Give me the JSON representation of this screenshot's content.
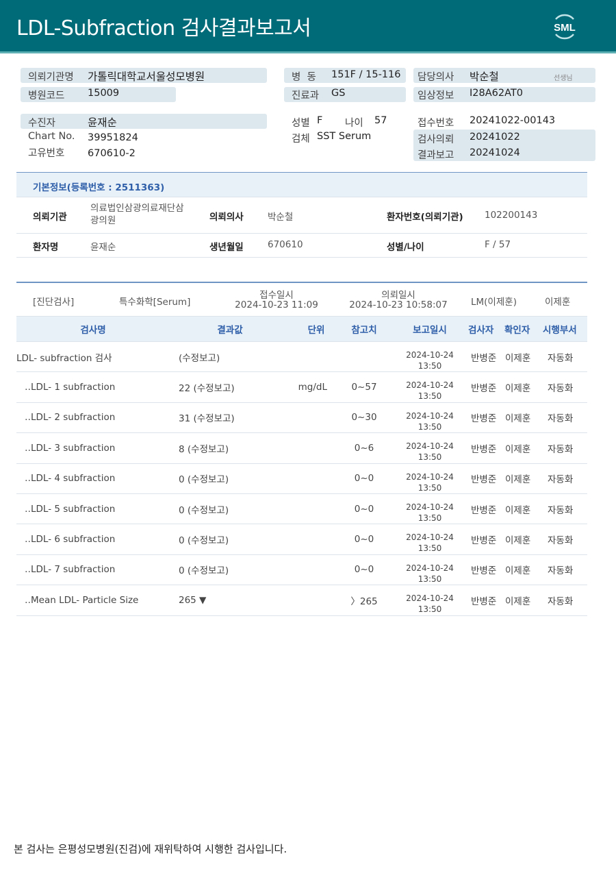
{
  "header": {
    "title": "LDL-Subfraction 검사결과보고서",
    "logo": "SML"
  },
  "info": {
    "inst_label": "의뢰기관명",
    "inst": "가톨릭대학교서울성모병원",
    "code_label": "병원코드",
    "code": "15009",
    "ward_label": "병  동",
    "ward": "151F / 15-116",
    "dept_label": "진료과",
    "dept": "GS",
    "doctor_label": "담당의사",
    "doctor": "박순철",
    "doctor_suffix": "선생님",
    "clinical_label": "임상정보",
    "clinical": "I28A62AT0",
    "patient_label": "수진자",
    "patient": "윤재순",
    "chart_label": "Chart No.",
    "chart": "39951824",
    "uid_label": "고유번호",
    "uid": "670610-2",
    "sex_label": "성별",
    "sex": "F",
    "age_label": "나이",
    "age": "57",
    "specimen_label": "검체",
    "specimen": "SST Serum",
    "receipt_label": "접수번호",
    "receipt": "20241022-00143",
    "request_label": "검사의뢰",
    "request": "20241022",
    "report_label": "결과보고",
    "report": "20241024"
  },
  "basic": {
    "title": "기본정보(등록번호 : 2511363)",
    "inst_label": "의뢰기관",
    "inst": "의료법인삼광의료재단삼\n광의원",
    "doctor_label": "의뢰의사",
    "doctor": "박순철",
    "pid_label": "환자번호(의뢰기관)",
    "pid": "102200143",
    "name_label": "환자명",
    "name": "윤재순",
    "birth_label": "생년월일",
    "birth": "670610",
    "sexage_label": "성별/나이",
    "sexage": "F / 57"
  },
  "exam": {
    "category": "[진단검사]",
    "sub": "특수화학[Serum]",
    "recv_label": "접수일시",
    "recv": "2024-10-23 11:09",
    "req_label": "의뢰일시",
    "req": "2024-10-23 10:58:07",
    "lm": "LM(이제훈)",
    "confirmer": "이제훈"
  },
  "table": {
    "headers": [
      "검사명",
      "결과값",
      "단위",
      "참고치",
      "보고일시",
      "검사자",
      "확인자",
      "시행부서"
    ],
    "rows": [
      {
        "name": "LDL- subfraction 검사",
        "result": "(수정보고)",
        "unit": "",
        "ref": "",
        "date": "2024-10-24",
        "time": "13:50",
        "tester": "반병준",
        "checker": "이제훈",
        "dept": "자동화"
      },
      {
        "name": "‥LDL- 1 subfraction",
        "result": "22 (수정보고)",
        "unit": "mg/dL",
        "ref": "0~57",
        "date": "2024-10-24",
        "time": "13:50",
        "tester": "반병준",
        "checker": "이제훈",
        "dept": "자동화"
      },
      {
        "name": "‥LDL- 2 subfraction",
        "result": "31 (수정보고)",
        "unit": "",
        "ref": "0~30",
        "date": "2024-10-24",
        "time": "13:50",
        "tester": "반병준",
        "checker": "이제훈",
        "dept": "자동화"
      },
      {
        "name": "‥LDL- 3 subfraction",
        "result": "8 (수정보고)",
        "unit": "",
        "ref": "0~6",
        "date": "2024-10-24",
        "time": "13:50",
        "tester": "반병준",
        "checker": "이제훈",
        "dept": "자동화"
      },
      {
        "name": "‥LDL- 4 subfraction",
        "result": "0 (수정보고)",
        "unit": "",
        "ref": "0~0",
        "date": "2024-10-24",
        "time": "13:50",
        "tester": "반병준",
        "checker": "이제훈",
        "dept": "자동화"
      },
      {
        "name": "‥LDL- 5 subfraction",
        "result": "0 (수정보고)",
        "unit": "",
        "ref": "0~0",
        "date": "2024-10-24",
        "time": "13:50",
        "tester": "반병준",
        "checker": "이제훈",
        "dept": "자동화"
      },
      {
        "name": "‥LDL- 6 subfraction",
        "result": "0 (수정보고)",
        "unit": "",
        "ref": "0~0",
        "date": "2024-10-24",
        "time": "13:50",
        "tester": "반병준",
        "checker": "이제훈",
        "dept": "자동화"
      },
      {
        "name": "‥LDL- 7 subfraction",
        "result": "0 (수정보고)",
        "unit": "",
        "ref": "0~0",
        "date": "2024-10-24",
        "time": "13:50",
        "tester": "반병준",
        "checker": "이제훈",
        "dept": "자동화"
      },
      {
        "name": "‥Mean LDL- Particle Size",
        "result": "265 ▼",
        "unit": "",
        "ref": "〉265",
        "date": "2024-10-24",
        "time": "13:50",
        "tester": "반병준",
        "checker": "이제훈",
        "dept": "자동화"
      }
    ]
  },
  "footer": "본 검사는 은평성모병원(진검)에 재위탁하여 시행한 검사입니다."
}
